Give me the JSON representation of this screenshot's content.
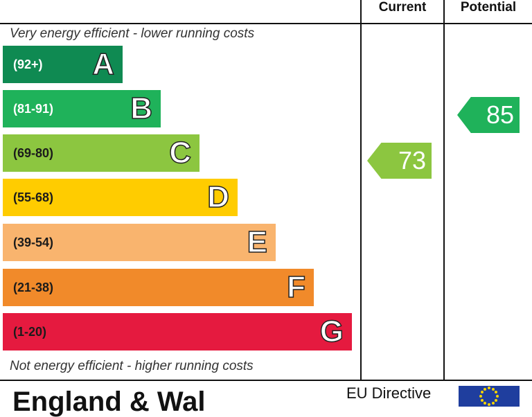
{
  "header": {
    "current_label": "Current",
    "potential_label": "Potential"
  },
  "notes": {
    "top": "Very energy efficient - lower running costs",
    "bottom": "Not energy efficient - higher running costs"
  },
  "chart_data": {
    "type": "bar",
    "title": "",
    "categories": [
      "A",
      "B",
      "C",
      "D",
      "E",
      "F",
      "G"
    ],
    "ranges": [
      "(92+)",
      "(81-91)",
      "(69-80)",
      "(55-68)",
      "(39-54)",
      "(21-38)",
      "(1-20)"
    ],
    "colors": [
      "#0f8a52",
      "#1fb25a",
      "#8cc640",
      "#ffcc00",
      "#f9b46e",
      "#f18a2a",
      "#e51a3f"
    ],
    "current": {
      "value": 73,
      "band": "C",
      "color": "#8cc640"
    },
    "potential": {
      "value": 85,
      "band": "B",
      "color": "#1fb25a"
    }
  },
  "footer": {
    "left_text": "England & Wal",
    "eu_text": "EU Directive"
  }
}
